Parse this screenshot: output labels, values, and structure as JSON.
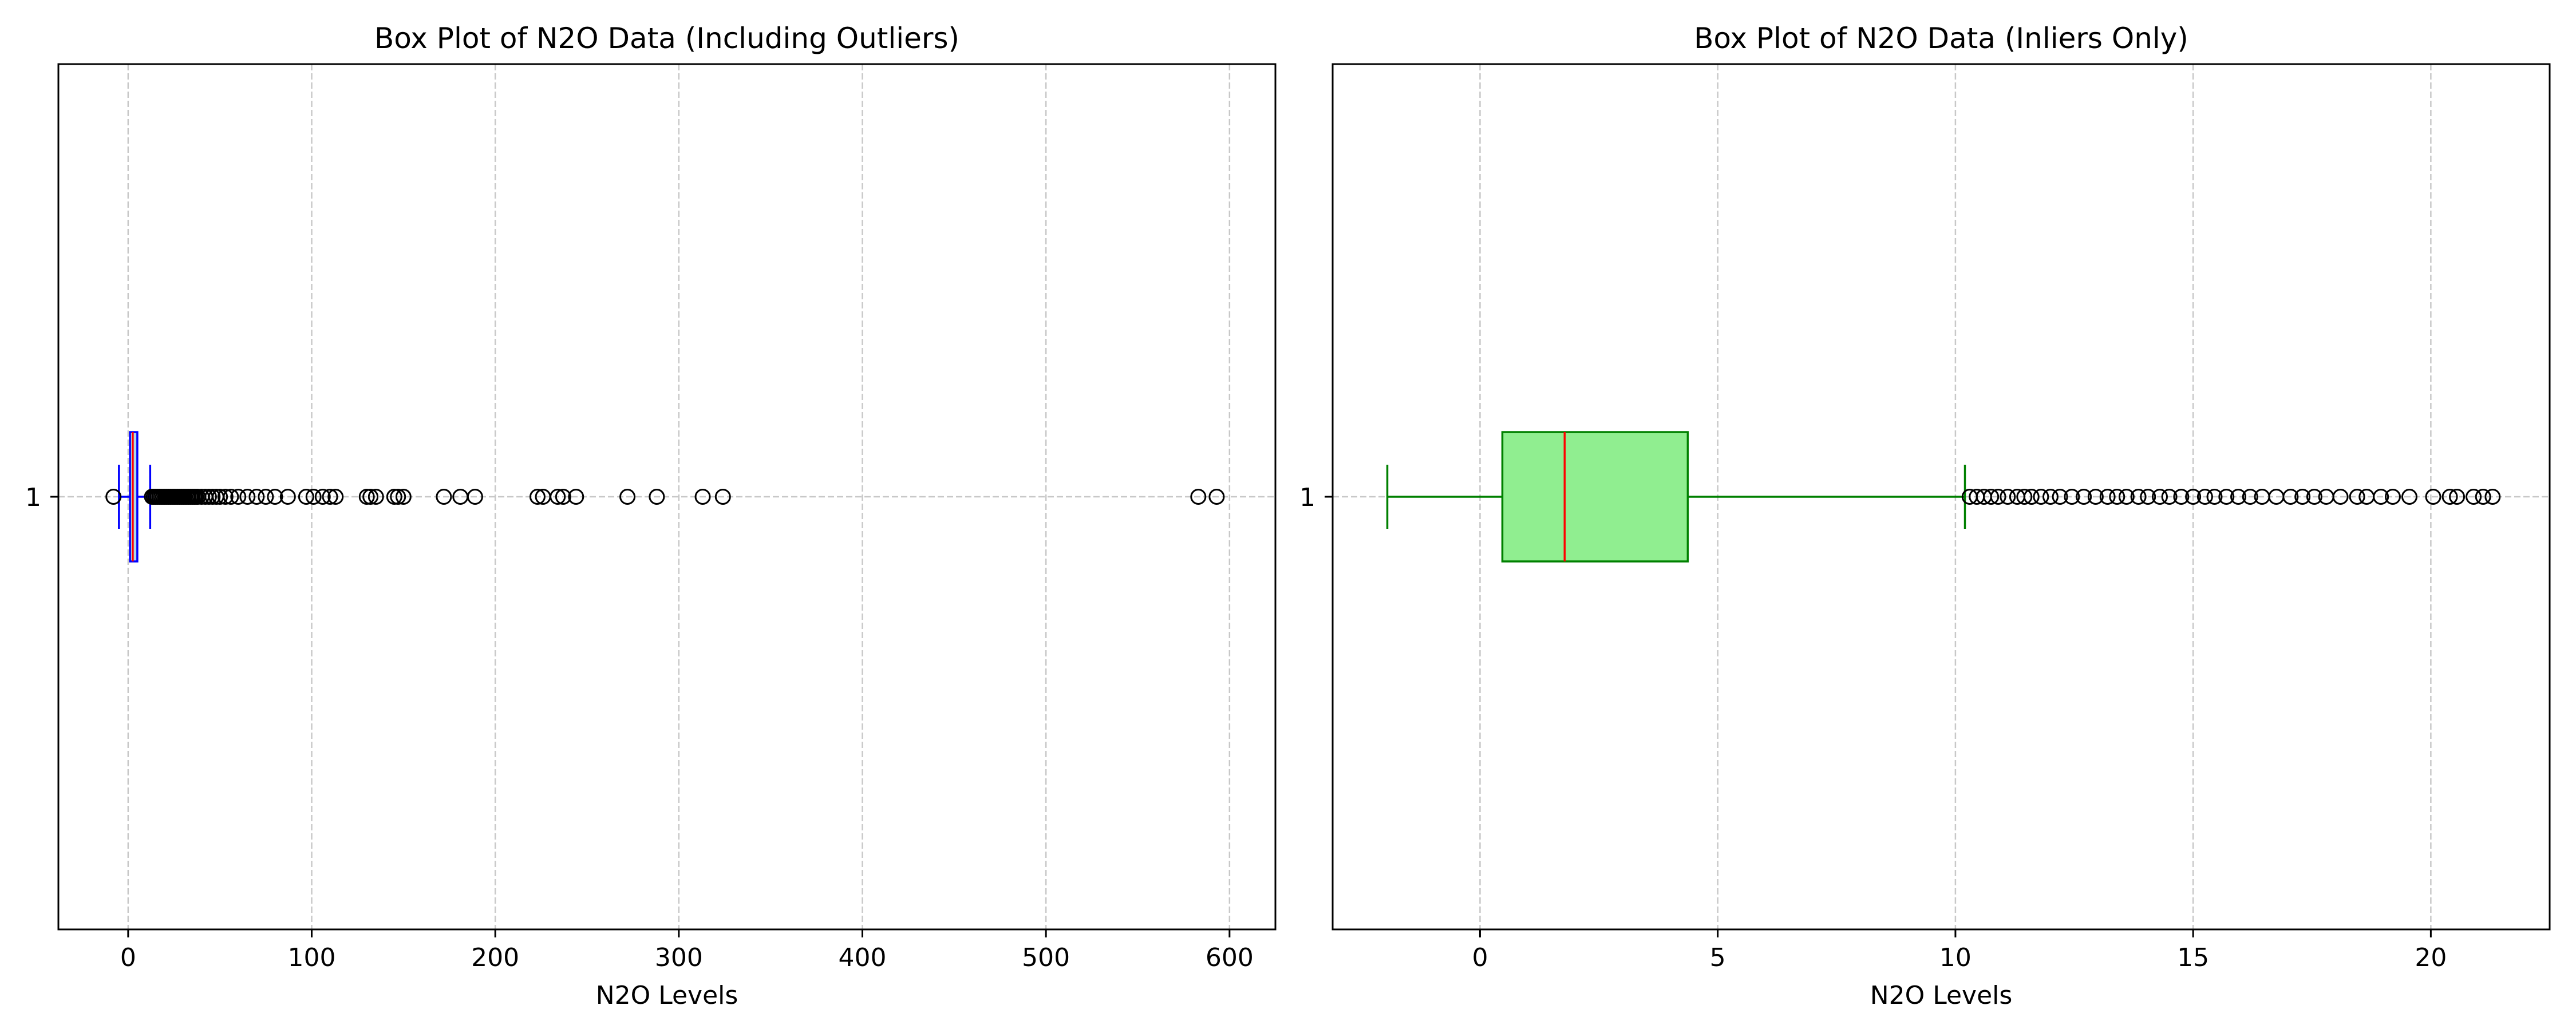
{
  "chart_data": [
    {
      "type": "boxplot",
      "orientation": "horizontal",
      "title": "Box Plot of N2O Data (Including Outliers)",
      "xlabel": "N2O Levels",
      "ylabel": "",
      "xlim": [
        -38,
        625
      ],
      "xticks": [
        0,
        100,
        200,
        300,
        400,
        500,
        600
      ],
      "yticks": [
        "1"
      ],
      "grid": true,
      "box": {
        "category": "1",
        "whisker_low": -5,
        "q1": 1,
        "median": 2.5,
        "q3": 5,
        "whisker_high": 12,
        "outliers": [
          -8,
          13,
          14,
          15,
          16,
          17,
          18,
          19,
          20,
          21,
          22,
          23,
          24,
          25,
          26,
          27,
          28,
          29,
          30,
          31,
          32,
          33,
          34,
          35,
          36,
          37,
          38,
          40,
          42,
          44,
          46,
          48,
          50,
          53,
          56,
          60,
          65,
          70,
          75,
          80,
          87,
          97,
          101,
          106,
          110,
          113,
          130,
          132,
          135,
          145,
          147,
          150,
          172,
          181,
          189,
          223,
          226,
          234,
          237,
          244,
          272,
          288,
          313,
          324,
          583,
          593
        ]
      },
      "colors": {
        "box_edge": "#0000ff",
        "box_fill": "#add8e6",
        "median": "#ff0000",
        "whisker": "#0000ff",
        "grid": "#c8c8c8"
      }
    },
    {
      "type": "boxplot",
      "orientation": "horizontal",
      "title": "Box Plot of N2O Data (Inliers Only)",
      "xlabel": "N2O Levels",
      "ylabel": "",
      "xlim": [
        -3.1,
        22.5
      ],
      "xticks": [
        0,
        5,
        10,
        15,
        20
      ],
      "yticks": [
        "1"
      ],
      "grid": true,
      "box": {
        "category": "1",
        "whisker_low": -1.95,
        "q1": 0.47,
        "median": 1.78,
        "q3": 4.37,
        "whisker_high": 10.2,
        "outliers": [
          10.3,
          10.45,
          10.6,
          10.75,
          10.9,
          11.1,
          11.3,
          11.45,
          11.6,
          11.8,
          12.0,
          12.2,
          12.45,
          12.7,
          12.95,
          13.2,
          13.4,
          13.6,
          13.85,
          14.05,
          14.3,
          14.5,
          14.75,
          15.0,
          15.25,
          15.45,
          15.7,
          15.95,
          16.2,
          16.45,
          16.75,
          17.05,
          17.3,
          17.55,
          17.8,
          18.1,
          18.45,
          18.65,
          18.95,
          19.2,
          19.55,
          20.05,
          20.4,
          20.55,
          20.9,
          21.1,
          21.3
        ]
      },
      "colors": {
        "box_edge": "#008000",
        "box_fill": "#90ee90",
        "median": "#ff0000",
        "whisker": "#008000",
        "grid": "#c8c8c8"
      }
    }
  ]
}
